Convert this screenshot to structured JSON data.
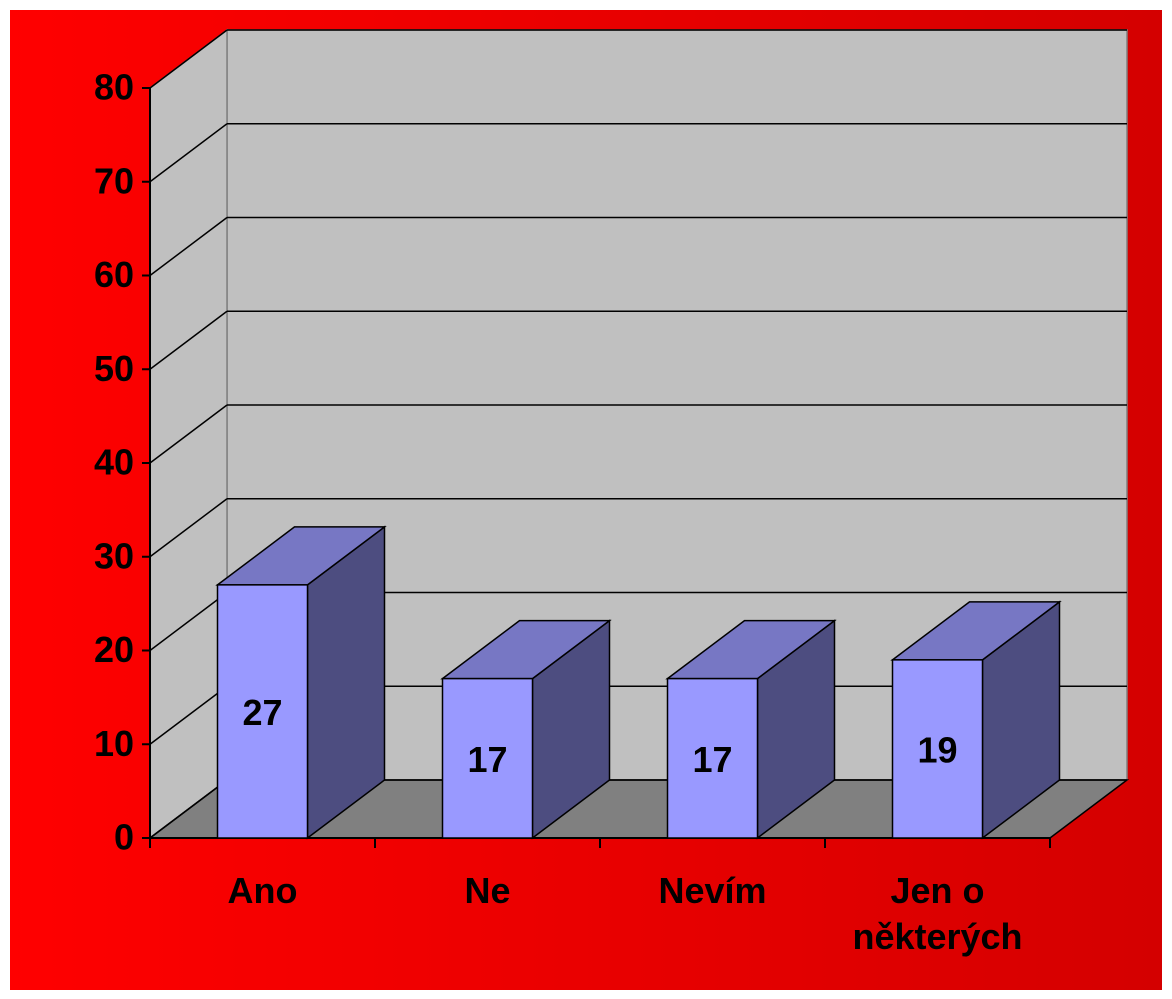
{
  "chart_data": {
    "type": "bar3d",
    "categories": [
      "Ano",
      "Ne",
      "Nevím",
      "Jen o některých"
    ],
    "values": [
      27,
      17,
      17,
      19
    ],
    "color": "#9999ff",
    "ylim": [
      0,
      80
    ],
    "yticks": [
      0,
      10,
      20,
      30,
      40,
      50,
      60,
      70,
      80
    ],
    "grid": true
  }
}
